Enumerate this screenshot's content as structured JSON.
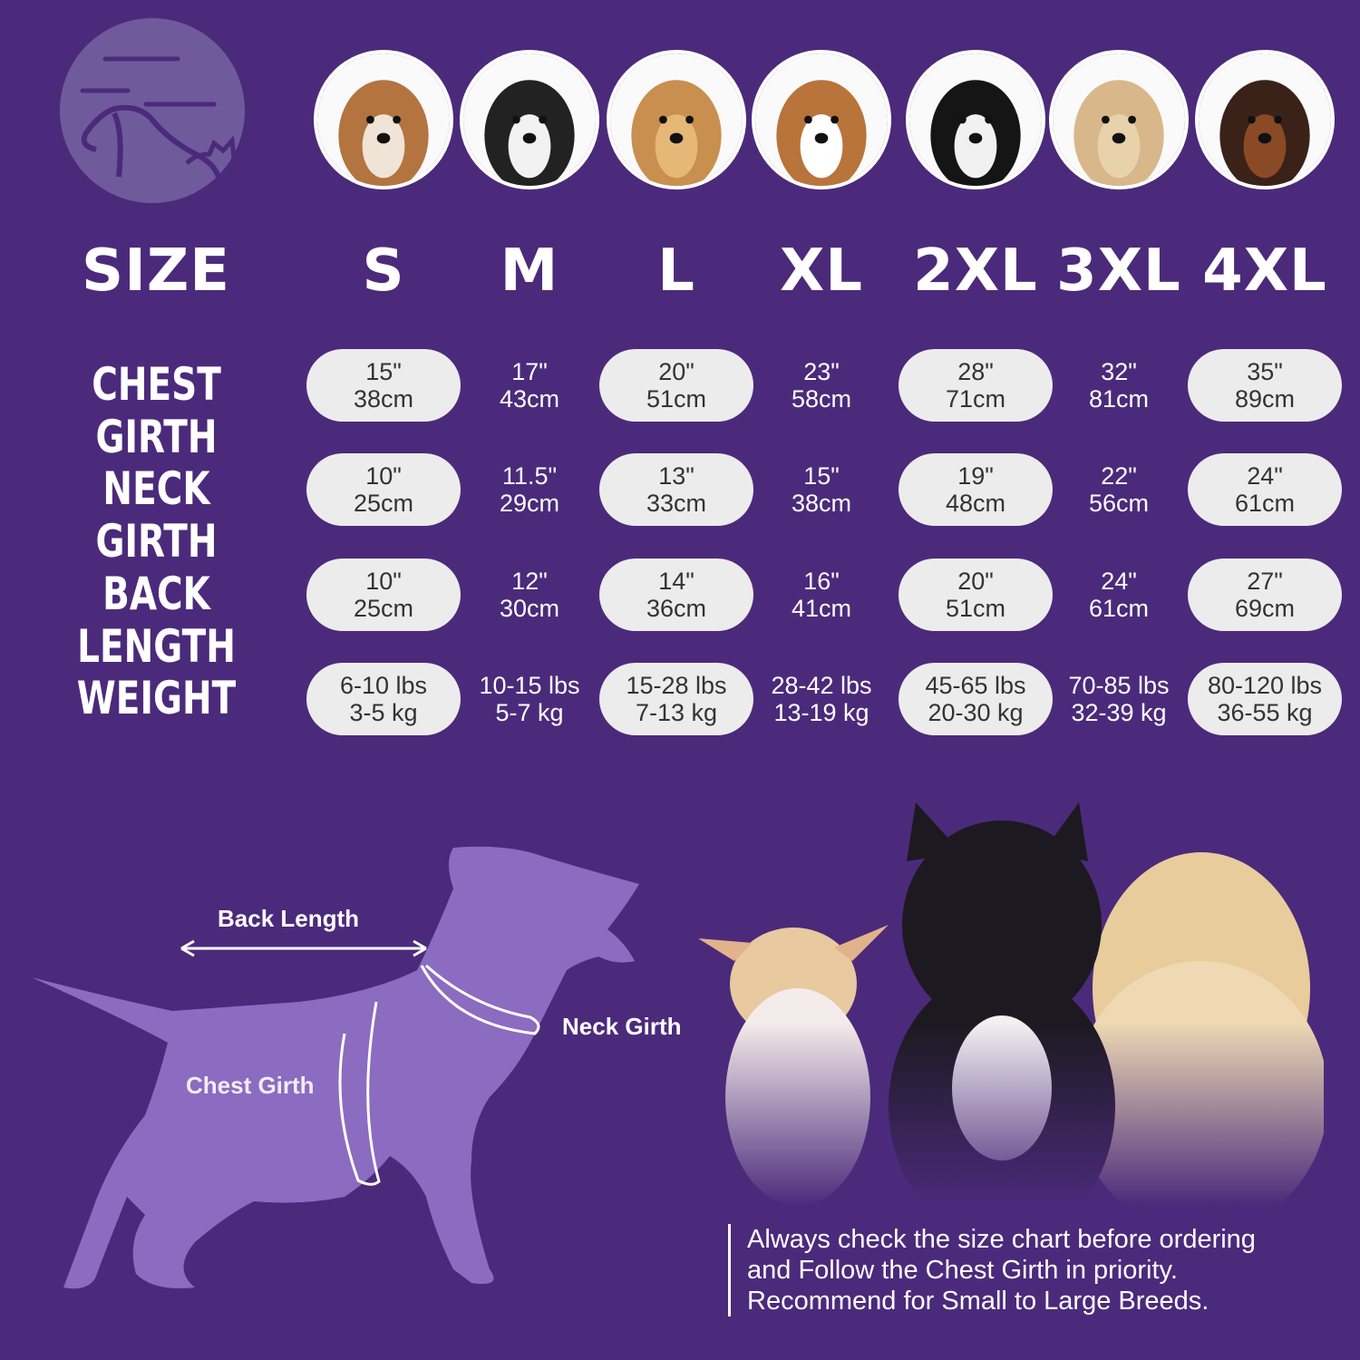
{
  "colors": {
    "background": "#4b2a7b",
    "pill": "#ececec",
    "silhouette": "#8b6cc0",
    "logo": "#6f5a9c"
  },
  "logo_icon": "dog-cat-icon",
  "breed_photos": [
    "shih-tzu",
    "boston-terrier",
    "cocker-spaniel",
    "beagle",
    "border-collie",
    "labrador",
    "doberman"
  ],
  "header": {
    "label": "SIZE",
    "sizes": [
      "S",
      "M",
      "L",
      "XL",
      "2XL",
      "3XL",
      "4XL"
    ]
  },
  "rows": [
    {
      "label": "CHEST GIRTH",
      "values": [
        [
          "15\"",
          "38cm"
        ],
        [
          "17\"",
          "43cm"
        ],
        [
          "20\"",
          "51cm"
        ],
        [
          "23\"",
          "58cm"
        ],
        [
          "28\"",
          "71cm"
        ],
        [
          "32\"",
          "81cm"
        ],
        [
          "35\"",
          "89cm"
        ]
      ]
    },
    {
      "label": "NECK GIRTH",
      "values": [
        [
          "10\"",
          "25cm"
        ],
        [
          "11.5\"",
          "29cm"
        ],
        [
          "13\"",
          "33cm"
        ],
        [
          "15\"",
          "38cm"
        ],
        [
          "19\"",
          "48cm"
        ],
        [
          "22\"",
          "56cm"
        ],
        [
          "24\"",
          "61cm"
        ]
      ]
    },
    {
      "label": "BACK LENGTH",
      "values": [
        [
          "10\"",
          "25cm"
        ],
        [
          "12\"",
          "30cm"
        ],
        [
          "14\"",
          "36cm"
        ],
        [
          "16\"",
          "41cm"
        ],
        [
          "20\"",
          "51cm"
        ],
        [
          "24\"",
          "61cm"
        ],
        [
          "27\"",
          "69cm"
        ]
      ]
    },
    {
      "label": "WEIGHT",
      "values": [
        [
          "6-10 lbs",
          "3-5 kg"
        ],
        [
          "10-15 lbs",
          "5-7 kg"
        ],
        [
          "15-28 lbs",
          "7-13 kg"
        ],
        [
          "28-42 lbs",
          "13-19 kg"
        ],
        [
          "45-65 lbs",
          "20-30 kg"
        ],
        [
          "70-85 lbs",
          "32-39 kg"
        ],
        [
          "80-120 lbs",
          "36-55 kg"
        ]
      ]
    }
  ],
  "diagram": {
    "back_length": "Back Length",
    "neck_girth": "Neck Girth",
    "chest_girth": "Chest Girth"
  },
  "note": {
    "lines": [
      "Always check the size chart before ordering",
      "and Follow the Chest Girth in priority.",
      "Recommend for Small to Large Breeds."
    ]
  }
}
